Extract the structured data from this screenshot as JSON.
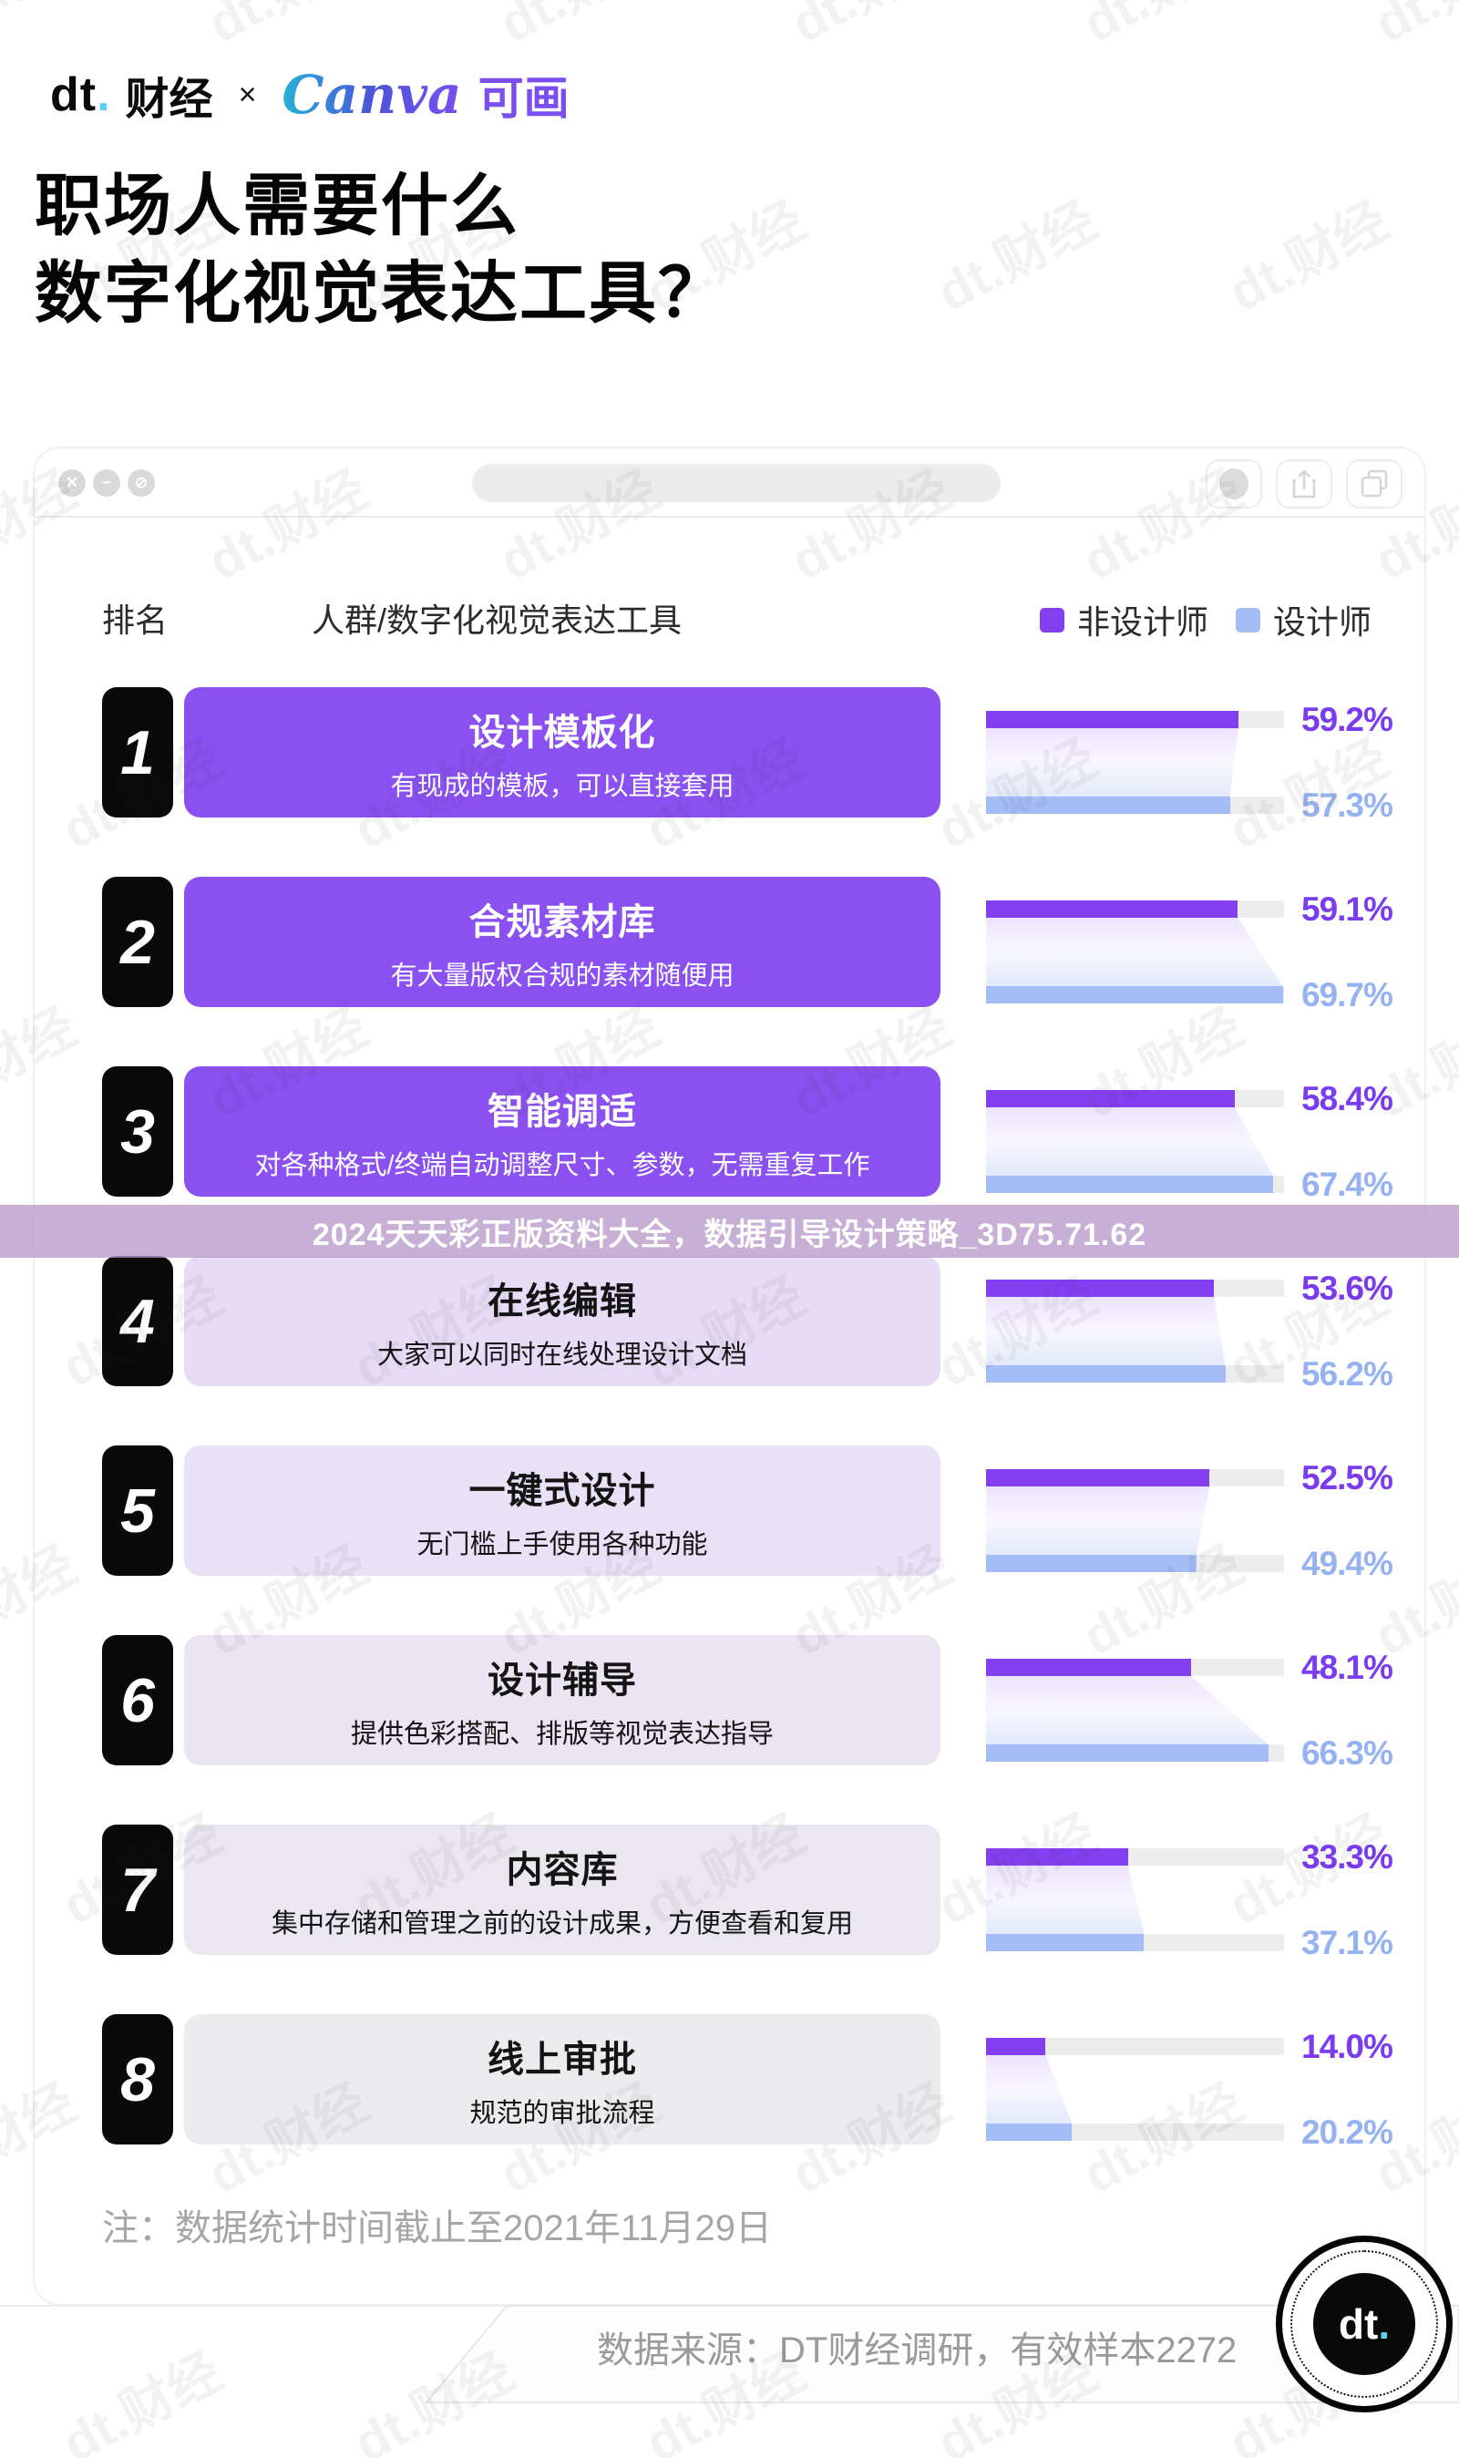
{
  "brand": {
    "dt_logo": "dt",
    "dt_dot": ".",
    "dt_name": "财经",
    "cross": "×",
    "canva": "Canva",
    "canva_cn": "可画"
  },
  "title": {
    "line1": "职场人需要什么",
    "line2": "数字化视觉表达工具？"
  },
  "window": {
    "chrome": {
      "close_glyph": "✕",
      "minimize_glyph": "−",
      "block_glyph": "⊘"
    },
    "header": {
      "rank_label": "排名",
      "group_label": "人群/数字化视觉表达工具"
    },
    "note": "注：数据统计时间截止至2021年11月29日"
  },
  "overlay_banner": {
    "text": "2024天天彩正版资料大全，数据引导设计策略_3D75.71.62"
  },
  "footer": {
    "source": "数据来源：DT财经调研，有效样本2272",
    "badge_logo": "dt",
    "badge_dot": "."
  },
  "watermark": {
    "text": "dt.财经"
  },
  "chart_data": {
    "type": "bar",
    "orientation": "horizontal",
    "title": "职场人需要什么数字化视觉表达工具？",
    "legend_position": "top-right",
    "axis_max_percent": 70,
    "unit": "%",
    "series": [
      {
        "name": "非设计师",
        "color": "#8440f0",
        "text_color": "#7b3cf0"
      },
      {
        "name": "设计师",
        "color": "#a5bdf6",
        "text_color": "#96b2f0"
      }
    ],
    "rows": [
      {
        "rank": "1",
        "title": "设计模板化",
        "desc": "有现成的模板，可以直接套用",
        "non_designer": 59.2,
        "designer": 57.3,
        "card_bg": "#8a51f0",
        "card_text": "#ffffff"
      },
      {
        "rank": "2",
        "title": "合规素材库",
        "desc": "有大量版权合规的素材随便用",
        "non_designer": 59.1,
        "designer": 69.7,
        "card_bg": "#8a51f0",
        "card_text": "#ffffff"
      },
      {
        "rank": "3",
        "title": "智能调适",
        "desc": "对各种格式/终端自动调整尺寸、参数，无需重复工作",
        "non_designer": 58.4,
        "designer": 67.4,
        "card_bg": "#8a51f0",
        "card_text": "#ffffff"
      },
      {
        "rank": "4",
        "title": "在线编辑",
        "desc": "大家可以同时在线处理设计文档",
        "non_designer": 53.6,
        "designer": 56.2,
        "card_bg": "#e6dcf6",
        "card_text": "#141414"
      },
      {
        "rank": "5",
        "title": "一键式设计",
        "desc": "无门槛上手使用各种功能",
        "non_designer": 52.5,
        "designer": 49.4,
        "card_bg": "#e9e1f6",
        "card_text": "#141414"
      },
      {
        "rank": "6",
        "title": "设计辅导",
        "desc": "提供色彩搭配、排版等视觉表达指导",
        "non_designer": 48.1,
        "designer": 66.3,
        "card_bg": "#eae4f3",
        "card_text": "#141414"
      },
      {
        "rank": "7",
        "title": "内容库",
        "desc": "集中存储和管理之前的设计成果，方便查看和复用",
        "non_designer": 33.3,
        "designer": 37.1,
        "card_bg": "#eae7f0",
        "card_text": "#141414"
      },
      {
        "rank": "8",
        "title": "线上审批",
        "desc": "规范的审批流程",
        "non_designer": 14.0,
        "designer": 20.2,
        "card_bg": "#ecebee",
        "card_text": "#141414"
      }
    ]
  }
}
